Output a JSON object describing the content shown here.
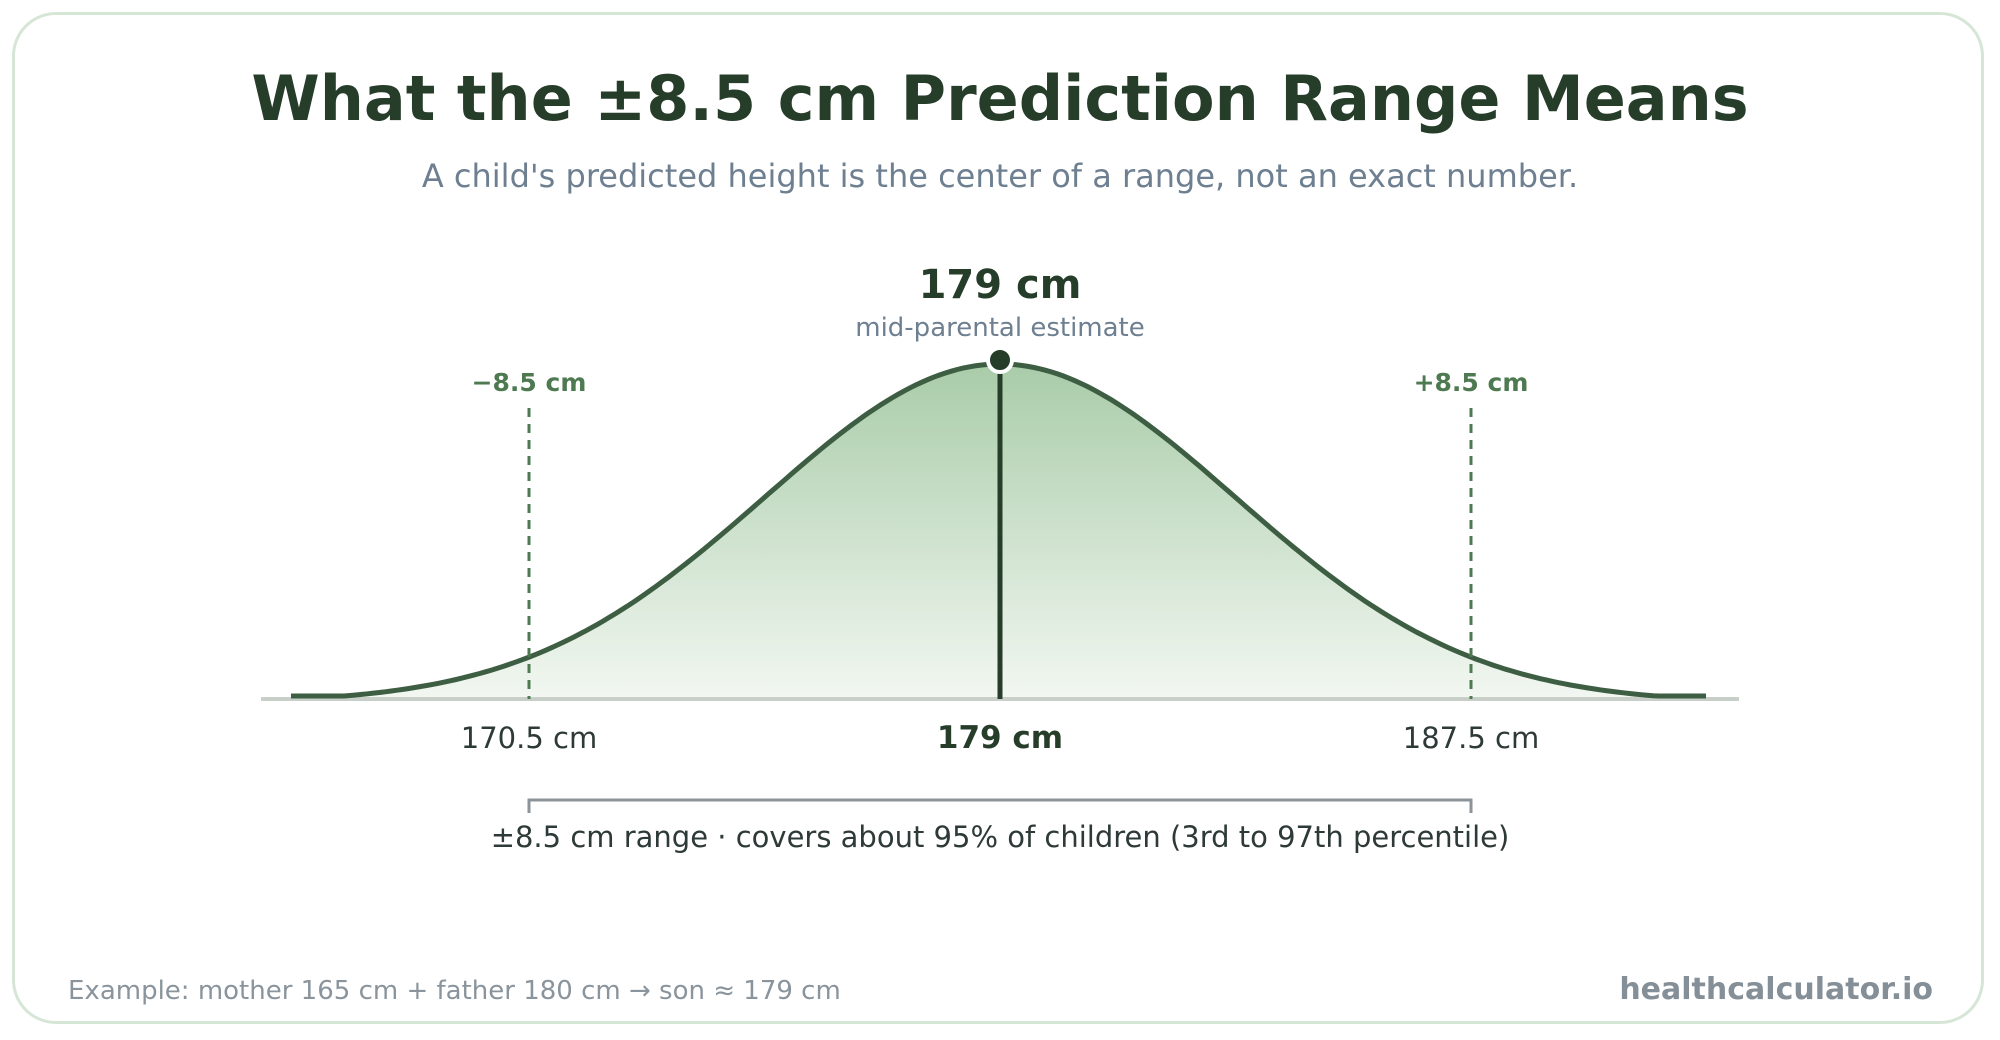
{
  "title": "What the ±8.5 cm Prediction Range Means",
  "subtitle": "A child's predicted height is the center of a range, not an exact number.",
  "diagram": {
    "center_value": 179,
    "spread": 8.5,
    "peak_value_label": "179 cm",
    "peak_caption": "mid-parental estimate",
    "lower_offset_label": "−8.5 cm",
    "upper_offset_label": "+8.5 cm",
    "ticks": [
      {
        "value": 170.5,
        "label": "170.5 cm"
      },
      {
        "value": 179,
        "label": "179 cm"
      },
      {
        "value": 187.5,
        "label": "187.5 cm"
      }
    ],
    "range_caption": "±8.5 cm range · covers about 95% of children (3rd to 97th percentile)",
    "colors": {
      "curve": "#3d5e42",
      "fill_top": "#a9cca9",
      "fill_bottom": "#f2f7f1",
      "dashed": "#4e7a52",
      "axis": "#c8cfc8",
      "bracket": "#8c949a"
    }
  },
  "footer": {
    "example": "Example: mother 165 cm + father 180 cm → son ≈ 179 cm",
    "brand": "healthcalculator.io"
  }
}
